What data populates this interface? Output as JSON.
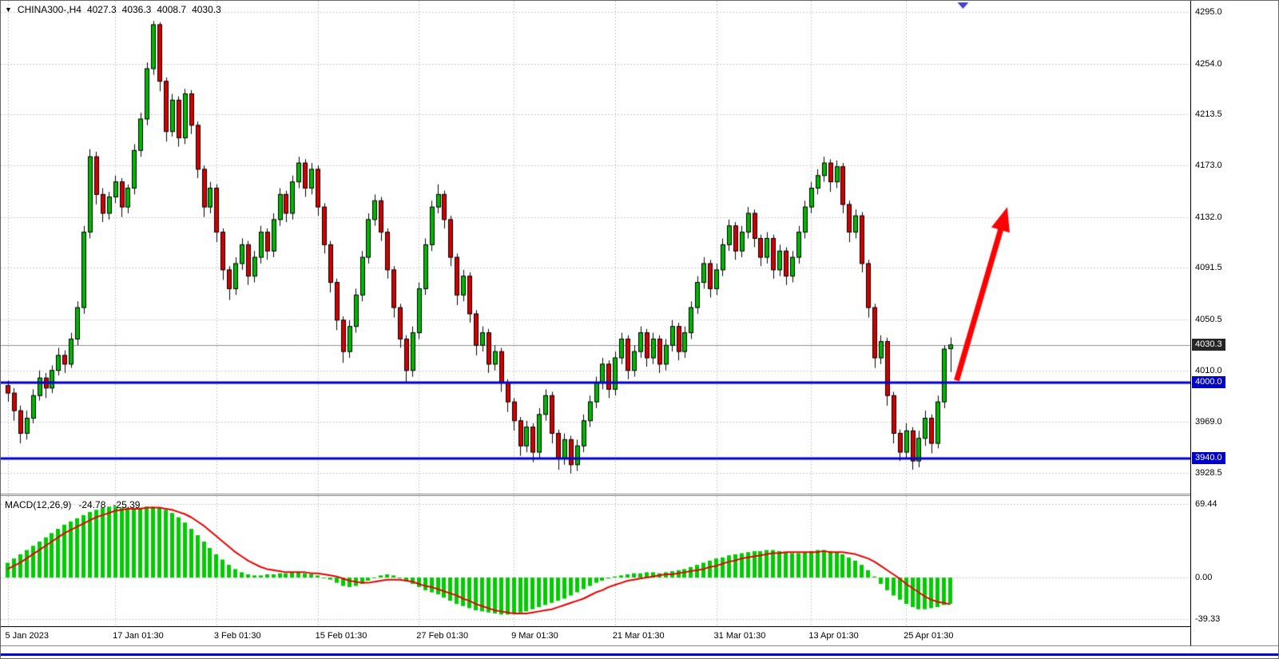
{
  "header": {
    "dropdown_icon": "▼",
    "symbol": "CHINA300-,H4",
    "open": "4027.3",
    "high": "4036.3",
    "low": "4008.7",
    "close": "4030.3"
  },
  "macd_label": {
    "name": "MACD(12,26,9)",
    "main_value": "-24.78",
    "signal_value": "-25.39"
  },
  "chart_data": {
    "type": "candlestick",
    "symbol": "CHINA300-",
    "timeframe": "H4",
    "layout": {
      "main_width": 1489,
      "main_height": 617,
      "macd_height": 162,
      "macd_top": 620,
      "x_start": 6,
      "x_step": 7.92,
      "candle_width": 5,
      "shift_marker_index": 151
    },
    "colors": {
      "bull": "#00b800",
      "bear": "#d40000",
      "wick": "#000000",
      "grid": "#c9c9c9",
      "current_price_line": "#909090",
      "support_line": "#0000c8",
      "arrow": "#ff0000",
      "shift_marker": "#4444cc"
    },
    "price_panel": {
      "y_range": [
        3912,
        4304
      ],
      "gridline_prices": [
        4295.0,
        4254.0,
        4213.5,
        4173.0,
        4132.0,
        4091.5,
        4050.5,
        4010.0,
        3969.0,
        3928.5
      ],
      "current_price": 4030.3,
      "support_lines": [
        {
          "price": 4000.0,
          "color": "#0000c8"
        },
        {
          "price": 3940.0,
          "color": "#0000c8"
        }
      ],
      "annotation_arrow": {
        "from_index": 150,
        "from_price": 4002,
        "to_index": 158,
        "to_price": 4140,
        "color": "#ff0000"
      }
    },
    "time_axis": {
      "labels": [
        {
          "index": 0,
          "text": "5 Jan 2023"
        },
        {
          "index": 17,
          "text": "17 Jan 01:30"
        },
        {
          "index": 33,
          "text": "3 Feb 01:30"
        },
        {
          "index": 49,
          "text": "15 Feb 01:30"
        },
        {
          "index": 65,
          "text": "27 Feb 01:30"
        },
        {
          "index": 80,
          "text": "9 Mar 01:30"
        },
        {
          "index": 96,
          "text": "21 Mar 01:30"
        },
        {
          "index": 112,
          "text": "31 Mar 01:30"
        },
        {
          "index": 127,
          "text": "13 Apr 01:30"
        },
        {
          "index": 142,
          "text": "25 Apr 01:30"
        }
      ]
    },
    "candles": [
      [
        3998,
        4002,
        3985,
        3992
      ],
      [
        3992,
        3996,
        3970,
        3978
      ],
      [
        3978,
        3982,
        3952,
        3960
      ],
      [
        3960,
        3978,
        3955,
        3972
      ],
      [
        3972,
        3995,
        3968,
        3990
      ],
      [
        3990,
        4010,
        3986,
        4004
      ],
      [
        4004,
        4008,
        3988,
        3996
      ],
      [
        3996,
        4014,
        3992,
        4010
      ],
      [
        4010,
        4028,
        4006,
        4022
      ],
      [
        4022,
        4026,
        4008,
        4015
      ],
      [
        4015,
        4040,
        4012,
        4035
      ],
      [
        4035,
        4065,
        4030,
        4060
      ],
      [
        4060,
        4125,
        4055,
        4120
      ],
      [
        4120,
        4186,
        4115,
        4180
      ],
      [
        4180,
        4184,
        4142,
        4150
      ],
      [
        4150,
        4155,
        4128,
        4135
      ],
      [
        4135,
        4152,
        4130,
        4148
      ],
      [
        4148,
        4165,
        4143,
        4160
      ],
      [
        4160,
        4163,
        4132,
        4140
      ],
      [
        4140,
        4158,
        4135,
        4155
      ],
      [
        4155,
        4190,
        4150,
        4185
      ],
      [
        4185,
        4215,
        4180,
        4210
      ],
      [
        4210,
        4255,
        4205,
        4250
      ],
      [
        4250,
        4288,
        4245,
        4285
      ],
      [
        4285,
        4287,
        4232,
        4240
      ],
      [
        4240,
        4243,
        4192,
        4200
      ],
      [
        4200,
        4230,
        4196,
        4225
      ],
      [
        4225,
        4228,
        4188,
        4195
      ],
      [
        4195,
        4234,
        4190,
        4230
      ],
      [
        4230,
        4233,
        4198,
        4205
      ],
      [
        4205,
        4208,
        4163,
        4170
      ],
      [
        4170,
        4173,
        4132,
        4140
      ],
      [
        4140,
        4160,
        4135,
        4155
      ],
      [
        4155,
        4158,
        4112,
        4120
      ],
      [
        4120,
        4123,
        4082,
        4090
      ],
      [
        4090,
        4093,
        4066,
        4075
      ],
      [
        4075,
        4100,
        4070,
        4095
      ],
      [
        4095,
        4115,
        4090,
        4110
      ],
      [
        4110,
        4113,
        4078,
        4085
      ],
      [
        4085,
        4105,
        4080,
        4100
      ],
      [
        4100,
        4125,
        4095,
        4120
      ],
      [
        4120,
        4123,
        4098,
        4105
      ],
      [
        4105,
        4135,
        4100,
        4130
      ],
      [
        4130,
        4155,
        4125,
        4150
      ],
      [
        4150,
        4153,
        4128,
        4135
      ],
      [
        4135,
        4165,
        4130,
        4160
      ],
      [
        4160,
        4180,
        4155,
        4175
      ],
      [
        4175,
        4178,
        4148,
        4155
      ],
      [
        4155,
        4175,
        4150,
        4170
      ],
      [
        4170,
        4173,
        4133,
        4140
      ],
      [
        4140,
        4143,
        4103,
        4110
      ],
      [
        4110,
        4113,
        4072,
        4080
      ],
      [
        4080,
        4083,
        4042,
        4050
      ],
      [
        4050,
        4053,
        4016,
        4025
      ],
      [
        4025,
        4050,
        4020,
        4045
      ],
      [
        4045,
        4075,
        4040,
        4070
      ],
      [
        4070,
        4105,
        4065,
        4100
      ],
      [
        4100,
        4135,
        4095,
        4130
      ],
      [
        4130,
        4150,
        4125,
        4145
      ],
      [
        4145,
        4148,
        4113,
        4120
      ],
      [
        4120,
        4123,
        4083,
        4090
      ],
      [
        4090,
        4093,
        4052,
        4060
      ],
      [
        4060,
        4063,
        4028,
        4035
      ],
      [
        4035,
        4038,
        4000,
        4010
      ],
      [
        4010,
        4045,
        4005,
        4040
      ],
      [
        4040,
        4080,
        4035,
        4075
      ],
      [
        4075,
        4115,
        4070,
        4110
      ],
      [
        4110,
        4145,
        4105,
        4140
      ],
      [
        4140,
        4158,
        4135,
        4150
      ],
      [
        4150,
        4153,
        4123,
        4130
      ],
      [
        4130,
        4133,
        4093,
        4100
      ],
      [
        4100,
        4103,
        4062,
        4070
      ],
      [
        4070,
        4090,
        4065,
        4085
      ],
      [
        4085,
        4088,
        4048,
        4055
      ],
      [
        4055,
        4058,
        4022,
        4030
      ],
      [
        4030,
        4045,
        4025,
        4040
      ],
      [
        4040,
        4043,
        4008,
        4015
      ],
      [
        4015,
        4030,
        4010,
        4025
      ],
      [
        4025,
        4028,
        3993,
        4000
      ],
      [
        4000,
        4003,
        3977,
        3985
      ],
      [
        3985,
        3988,
        3962,
        3970
      ],
      [
        3970,
        3973,
        3942,
        3950
      ],
      [
        3950,
        3970,
        3945,
        3965
      ],
      [
        3965,
        3968,
        3937,
        3945
      ],
      [
        3945,
        3980,
        3940,
        3975
      ],
      [
        3975,
        3995,
        3970,
        3990
      ],
      [
        3990,
        3993,
        3952,
        3960
      ],
      [
        3960,
        3963,
        3931,
        3940
      ],
      [
        3940,
        3960,
        3935,
        3955
      ],
      [
        3955,
        3958,
        3928,
        3935
      ],
      [
        3935,
        3955,
        3930,
        3950
      ],
      [
        3950,
        3975,
        3945,
        3970
      ],
      [
        3970,
        3990,
        3965,
        3985
      ],
      [
        3985,
        4005,
        3980,
        4000
      ],
      [
        4000,
        4020,
        3995,
        4015
      ],
      [
        4015,
        4018,
        3988,
        3995
      ],
      [
        3995,
        4025,
        3990,
        4020
      ],
      [
        4020,
        4040,
        4015,
        4035
      ],
      [
        4035,
        4038,
        4003,
        4010
      ],
      [
        4010,
        4030,
        4005,
        4025
      ],
      [
        4025,
        4045,
        4020,
        4040
      ],
      [
        4040,
        4043,
        4013,
        4020
      ],
      [
        4020,
        4040,
        4015,
        4035
      ],
      [
        4035,
        4038,
        4008,
        4015
      ],
      [
        4015,
        4035,
        4010,
        4030
      ],
      [
        4030,
        4050,
        4025,
        4045
      ],
      [
        4045,
        4048,
        4018,
        4025
      ],
      [
        4025,
        4045,
        4020,
        4040
      ],
      [
        4040,
        4065,
        4035,
        4060
      ],
      [
        4060,
        4085,
        4055,
        4080
      ],
      [
        4080,
        4100,
        4075,
        4095
      ],
      [
        4095,
        4098,
        4068,
        4075
      ],
      [
        4075,
        4095,
        4070,
        4090
      ],
      [
        4090,
        4115,
        4085,
        4110
      ],
      [
        4110,
        4130,
        4105,
        4125
      ],
      [
        4125,
        4128,
        4098,
        4105
      ],
      [
        4105,
        4125,
        4100,
        4120
      ],
      [
        4120,
        4140,
        4115,
        4135
      ],
      [
        4135,
        4138,
        4108,
        4115
      ],
      [
        4115,
        4118,
        4093,
        4100
      ],
      [
        4100,
        4120,
        4095,
        4115
      ],
      [
        4115,
        4118,
        4083,
        4090
      ],
      [
        4090,
        4110,
        4085,
        4105
      ],
      [
        4105,
        4108,
        4078,
        4085
      ],
      [
        4085,
        4105,
        4080,
        4100
      ],
      [
        4100,
        4125,
        4095,
        4120
      ],
      [
        4120,
        4145,
        4115,
        4140
      ],
      [
        4140,
        4160,
        4135,
        4155
      ],
      [
        4155,
        4170,
        4150,
        4165
      ],
      [
        4165,
        4180,
        4160,
        4175
      ],
      [
        4175,
        4178,
        4152,
        4160
      ],
      [
        4160,
        4177,
        4155,
        4172
      ],
      [
        4172,
        4175,
        4135,
        4142
      ],
      [
        4142,
        4145,
        4112,
        4120
      ],
      [
        4120,
        4138,
        4115,
        4133
      ],
      [
        4133,
        4136,
        4088,
        4095
      ],
      [
        4095,
        4098,
        4052,
        4060
      ],
      [
        4060,
        4063,
        4012,
        4020
      ],
      [
        4020,
        4038,
        4015,
        4033
      ],
      [
        4033,
        4036,
        3982,
        3990
      ],
      [
        3990,
        3993,
        3952,
        3960
      ],
      [
        3960,
        3963,
        3938,
        3945
      ],
      [
        3945,
        3968,
        3940,
        3962
      ],
      [
        3962,
        3965,
        3931,
        3938
      ],
      [
        3938,
        3962,
        3933,
        3956
      ],
      [
        3956,
        3978,
        3950,
        3972
      ],
      [
        3972,
        3975,
        3944,
        3952
      ],
      [
        3952,
        3990,
        3948,
        3985
      ],
      [
        3985,
        4030,
        3980,
        4027
      ],
      [
        4027.3,
        4036.3,
        4008.7,
        4030.3
      ]
    ],
    "macd_panel": {
      "name": "MACD(12,26,9)",
      "main_value": -24.78,
      "signal_value": -25.39,
      "y_range": [
        -45.3,
        77
      ],
      "axis_labels": [
        69.44,
        0.0,
        -39.33
      ],
      "histogram_color": "#00cc00",
      "signal_color": "#e60000",
      "histogram": [
        14,
        18,
        22,
        26,
        30,
        34,
        38,
        42,
        46,
        50,
        53,
        56,
        59,
        62,
        64,
        66,
        67,
        67,
        66,
        66,
        65,
        66,
        67,
        67,
        66,
        64,
        61,
        57,
        52,
        46,
        40,
        34,
        28,
        22,
        17,
        12,
        8,
        5,
        3,
        2,
        2,
        3,
        3,
        4,
        4,
        5,
        5,
        4,
        3,
        2,
        0,
        -2,
        -5,
        -8,
        -9,
        -8,
        -6,
        -3,
        0,
        2,
        3,
        2,
        0,
        -3,
        -6,
        -9,
        -12,
        -14,
        -16,
        -19,
        -22,
        -25,
        -27,
        -29,
        -31,
        -32,
        -33,
        -34,
        -35,
        -35,
        -34,
        -33,
        -32,
        -30,
        -28,
        -26,
        -24,
        -22,
        -20,
        -17,
        -14,
        -11,
        -8,
        -5,
        -3,
        -1,
        1,
        2,
        3,
        4,
        4,
        5,
        5,
        4,
        5,
        6,
        7,
        8,
        10,
        12,
        14,
        16,
        18,
        19,
        21,
        22,
        23,
        24,
        25,
        25,
        26,
        26,
        25,
        24,
        23,
        23,
        24,
        25,
        26,
        26,
        25,
        24,
        22,
        19,
        16,
        12,
        7,
        1,
        -6,
        -12,
        -17,
        -21,
        -25,
        -28,
        -30,
        -30,
        -29,
        -28,
        -26,
        -24.78
      ],
      "signal": [
        8,
        11,
        14,
        18,
        22,
        26,
        30,
        34,
        38,
        42,
        45,
        48,
        51,
        54,
        57,
        59,
        61,
        63,
        64,
        65,
        65,
        65,
        66,
        66,
        66,
        65,
        64,
        62,
        60,
        57,
        53,
        49,
        44,
        39,
        34,
        29,
        24,
        20,
        16,
        13,
        10,
        8,
        7,
        6,
        5,
        5,
        5,
        5,
        4,
        4,
        3,
        2,
        1,
        -1,
        -3,
        -4,
        -5,
        -5,
        -4,
        -3,
        -2,
        -2,
        -2,
        -3,
        -4,
        -6,
        -8,
        -9,
        -11,
        -13,
        -15,
        -17,
        -20,
        -22,
        -25,
        -27,
        -29,
        -31,
        -32,
        -33,
        -34,
        -34,
        -34,
        -33,
        -32,
        -31,
        -30,
        -28,
        -26,
        -24,
        -22,
        -20,
        -17,
        -14,
        -12,
        -9,
        -7,
        -5,
        -3,
        -2,
        -1,
        0,
        1,
        2,
        3,
        3,
        4,
        5,
        6,
        7,
        8,
        10,
        11,
        13,
        15,
        16,
        18,
        19,
        20,
        21,
        22,
        23,
        23,
        24,
        24,
        24,
        24,
        24,
        24,
        25,
        24,
        24,
        24,
        23,
        22,
        20,
        18,
        15,
        11,
        7,
        3,
        -1,
        -6,
        -10,
        -14,
        -18,
        -21,
        -23,
        -24,
        -25.39
      ]
    }
  }
}
